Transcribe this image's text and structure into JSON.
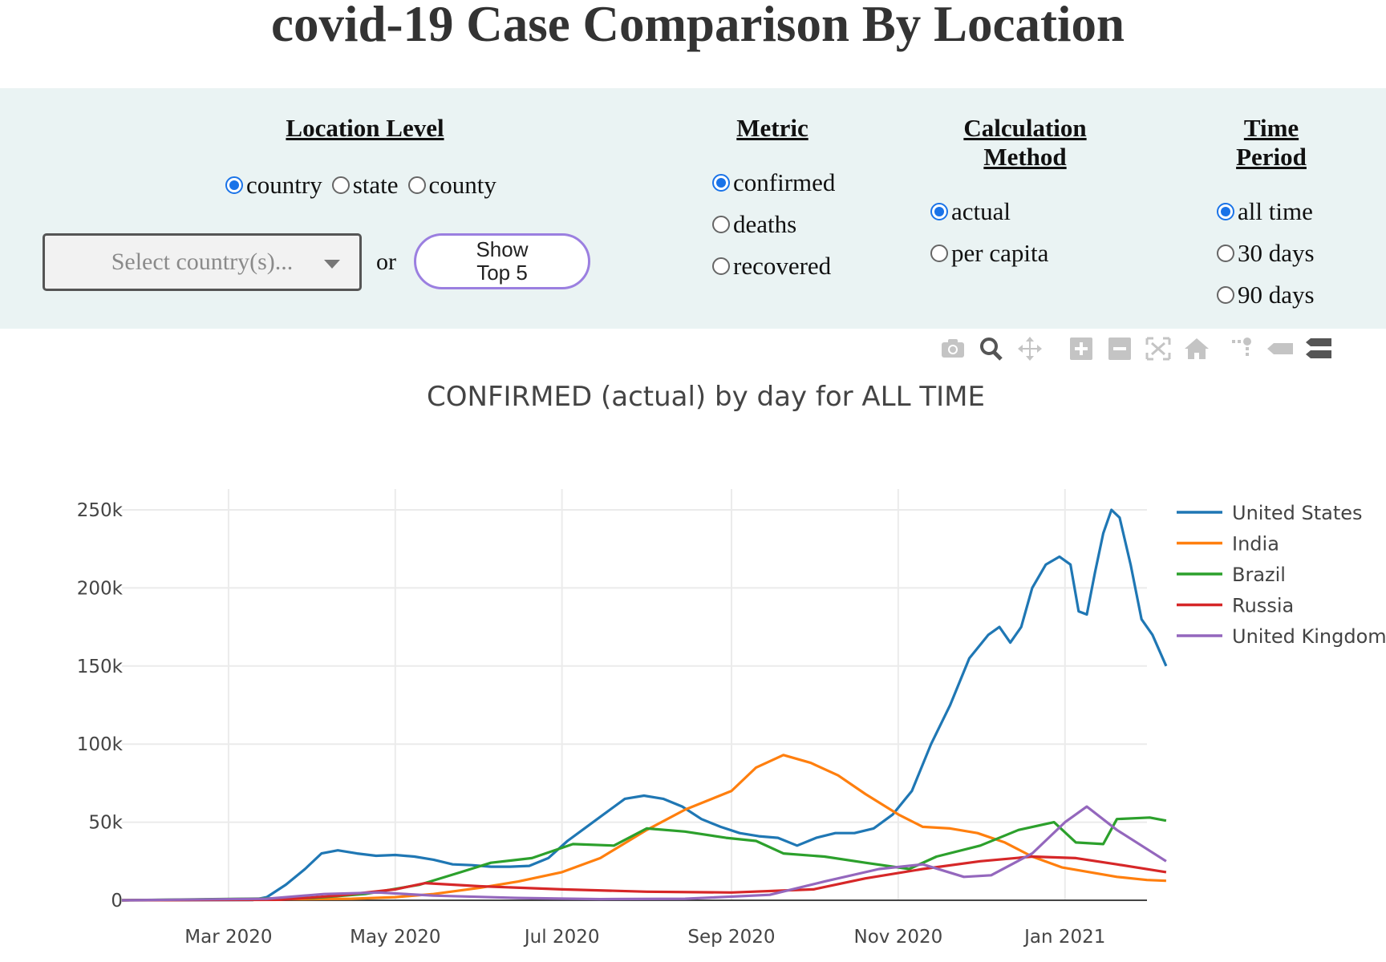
{
  "page": {
    "title": "covid-19 Case Comparison By Location"
  },
  "controls": {
    "location_level": {
      "heading": "Location Level",
      "options": [
        "country",
        "state",
        "county"
      ],
      "selected": "country",
      "select_placeholder": "Select country(s)...",
      "or_label": "or",
      "top5_line1": "Show",
      "top5_line2": "Top 5"
    },
    "metric": {
      "heading": "Metric",
      "options": [
        "confirmed",
        "deaths",
        "recovered"
      ],
      "selected": "confirmed"
    },
    "calculation": {
      "heading_line1": "Calculation",
      "heading_line2": "Method",
      "options": [
        "actual",
        "per capita"
      ],
      "selected": "actual"
    },
    "time_period": {
      "heading_line1": "Time",
      "heading_line2": "Period",
      "options": [
        "all time",
        "30 days",
        "90 days"
      ],
      "selected": "all time"
    }
  },
  "modebar": {
    "icons": [
      "camera-icon",
      "zoom-icon",
      "pan-icon",
      "zoom-in-icon",
      "zoom-out-icon",
      "autoscale-icon",
      "home-icon",
      "spike-lines-icon",
      "hover-closest-icon",
      "hover-compare-icon"
    ]
  },
  "chart_data": {
    "type": "line",
    "title": "CONFIRMED (actual) by day for ALL TIME",
    "x_ticks": [
      "Mar 2020",
      "May 2020",
      "Jul 2020",
      "Sep 2020",
      "Nov 2020",
      "Jan 2021"
    ],
    "x_range": [
      "2020-01-22",
      "2021-01-31"
    ],
    "y_ticks": [
      "0",
      "50k",
      "100k",
      "150k",
      "200k",
      "250k"
    ],
    "ylim": [
      0,
      250000
    ],
    "grid": true,
    "legend_position": "top-right",
    "series": [
      {
        "name": "United States",
        "color": "#1f77b4",
        "points": [
          [
            "2020-01-22",
            0
          ],
          [
            "2020-03-10",
            200
          ],
          [
            "2020-03-15",
            2000
          ],
          [
            "2020-03-22",
            10000
          ],
          [
            "2020-03-29",
            20000
          ],
          [
            "2020-04-04",
            30000
          ],
          [
            "2020-04-10",
            32000
          ],
          [
            "2020-04-17",
            30000
          ],
          [
            "2020-04-24",
            28500
          ],
          [
            "2020-05-01",
            29000
          ],
          [
            "2020-05-08",
            28000
          ],
          [
            "2020-05-15",
            26000
          ],
          [
            "2020-05-22",
            23000
          ],
          [
            "2020-05-29",
            22500
          ],
          [
            "2020-06-05",
            21500
          ],
          [
            "2020-06-12",
            21500
          ],
          [
            "2020-06-19",
            22000
          ],
          [
            "2020-06-26",
            27000
          ],
          [
            "2020-07-03",
            38000
          ],
          [
            "2020-07-10",
            47000
          ],
          [
            "2020-07-17",
            56000
          ],
          [
            "2020-07-24",
            65000
          ],
          [
            "2020-07-31",
            67000
          ],
          [
            "2020-08-07",
            65000
          ],
          [
            "2020-08-14",
            60000
          ],
          [
            "2020-08-21",
            52000
          ],
          [
            "2020-08-28",
            47000
          ],
          [
            "2020-09-04",
            43000
          ],
          [
            "2020-09-11",
            41000
          ],
          [
            "2020-09-18",
            40000
          ],
          [
            "2020-09-25",
            35000
          ],
          [
            "2020-10-02",
            40000
          ],
          [
            "2020-10-09",
            43000
          ],
          [
            "2020-10-16",
            43000
          ],
          [
            "2020-10-23",
            46000
          ],
          [
            "2020-10-30",
            55000
          ],
          [
            "2020-11-06",
            70000
          ],
          [
            "2020-11-13",
            100000
          ],
          [
            "2020-11-20",
            125000
          ],
          [
            "2020-11-27",
            155000
          ],
          [
            "2020-12-04",
            170000
          ],
          [
            "2020-12-08",
            175000
          ],
          [
            "2020-12-12",
            165000
          ],
          [
            "2020-12-16",
            175000
          ],
          [
            "2020-12-20",
            200000
          ],
          [
            "2020-12-25",
            215000
          ],
          [
            "2020-12-30",
            220000
          ],
          [
            "2021-01-03",
            215000
          ],
          [
            "2021-01-06",
            185000
          ],
          [
            "2021-01-09",
            183000
          ],
          [
            "2021-01-12",
            210000
          ],
          [
            "2021-01-15",
            235000
          ],
          [
            "2021-01-18",
            250000
          ],
          [
            "2021-01-21",
            245000
          ],
          [
            "2021-01-25",
            215000
          ],
          [
            "2021-01-29",
            180000
          ],
          [
            "2021-02-02",
            170000
          ],
          [
            "2021-02-07",
            150000
          ]
        ]
      },
      {
        "name": "India",
        "color": "#ff7f0e",
        "points": [
          [
            "2020-01-22",
            0
          ],
          [
            "2020-04-15",
            1000
          ],
          [
            "2020-05-01",
            2000
          ],
          [
            "2020-05-15",
            4000
          ],
          [
            "2020-06-01",
            8000
          ],
          [
            "2020-06-15",
            12000
          ],
          [
            "2020-07-01",
            18000
          ],
          [
            "2020-07-15",
            27000
          ],
          [
            "2020-08-01",
            45000
          ],
          [
            "2020-08-15",
            58000
          ],
          [
            "2020-09-01",
            70000
          ],
          [
            "2020-09-10",
            85000
          ],
          [
            "2020-09-20",
            93000
          ],
          [
            "2020-09-30",
            88000
          ],
          [
            "2020-10-10",
            80000
          ],
          [
            "2020-10-20",
            68000
          ],
          [
            "2020-11-01",
            55000
          ],
          [
            "2020-11-10",
            47000
          ],
          [
            "2020-11-20",
            46000
          ],
          [
            "2020-11-30",
            43000
          ],
          [
            "2020-12-10",
            37000
          ],
          [
            "2020-12-20",
            28000
          ],
          [
            "2020-12-31",
            21000
          ],
          [
            "2021-01-10",
            18000
          ],
          [
            "2021-01-20",
            15000
          ],
          [
            "2021-01-31",
            13000
          ],
          [
            "2021-02-07",
            12500
          ]
        ]
      },
      {
        "name": "Brazil",
        "color": "#2ca02c",
        "points": [
          [
            "2020-01-22",
            0
          ],
          [
            "2020-04-01",
            1500
          ],
          [
            "2020-04-20",
            4000
          ],
          [
            "2020-05-10",
            10000
          ],
          [
            "2020-05-25",
            18000
          ],
          [
            "2020-06-05",
            24000
          ],
          [
            "2020-06-20",
            27000
          ],
          [
            "2020-07-05",
            36000
          ],
          [
            "2020-07-20",
            35000
          ],
          [
            "2020-08-01",
            46000
          ],
          [
            "2020-08-15",
            44000
          ],
          [
            "2020-08-30",
            40000
          ],
          [
            "2020-09-10",
            38000
          ],
          [
            "2020-09-20",
            30000
          ],
          [
            "2020-10-05",
            28000
          ],
          [
            "2020-10-20",
            24000
          ],
          [
            "2020-11-05",
            20000
          ],
          [
            "2020-11-15",
            28000
          ],
          [
            "2020-12-01",
            35000
          ],
          [
            "2020-12-15",
            45000
          ],
          [
            "2020-12-28",
            50000
          ],
          [
            "2021-01-05",
            37000
          ],
          [
            "2021-01-15",
            36000
          ],
          [
            "2021-01-20",
            52000
          ],
          [
            "2021-02-01",
            53000
          ],
          [
            "2021-02-07",
            51000
          ]
        ]
      },
      {
        "name": "Russia",
        "color": "#d62728",
        "points": [
          [
            "2020-01-22",
            0
          ],
          [
            "2020-03-20",
            300
          ],
          [
            "2020-04-10",
            3000
          ],
          [
            "2020-05-01",
            7000
          ],
          [
            "2020-05-12",
            11000
          ],
          [
            "2020-06-01",
            9000
          ],
          [
            "2020-07-01",
            7000
          ],
          [
            "2020-08-01",
            5500
          ],
          [
            "2020-09-01",
            5000
          ],
          [
            "2020-10-01",
            7000
          ],
          [
            "2020-10-20",
            14000
          ],
          [
            "2020-11-10",
            20000
          ],
          [
            "2020-12-01",
            25000
          ],
          [
            "2020-12-20",
            28000
          ],
          [
            "2021-01-05",
            27000
          ],
          [
            "2021-01-20",
            23000
          ],
          [
            "2021-02-07",
            18000
          ]
        ]
      },
      {
        "name": "United Kingdom",
        "color": "#9467bd",
        "points": [
          [
            "2020-01-22",
            0
          ],
          [
            "2020-03-15",
            1000
          ],
          [
            "2020-04-05",
            4000
          ],
          [
            "2020-04-25",
            5000
          ],
          [
            "2020-05-15",
            3000
          ],
          [
            "2020-06-15",
            1500
          ],
          [
            "2020-07-15",
            700
          ],
          [
            "2020-08-15",
            1000
          ],
          [
            "2020-09-15",
            3500
          ],
          [
            "2020-10-05",
            12000
          ],
          [
            "2020-10-25",
            20000
          ],
          [
            "2020-11-10",
            23000
          ],
          [
            "2020-11-25",
            15000
          ],
          [
            "2020-12-05",
            16000
          ],
          [
            "2020-12-20",
            30000
          ],
          [
            "2021-01-01",
            50000
          ],
          [
            "2021-01-09",
            60000
          ],
          [
            "2021-01-20",
            45000
          ],
          [
            "2021-02-07",
            25000
          ]
        ]
      }
    ]
  }
}
